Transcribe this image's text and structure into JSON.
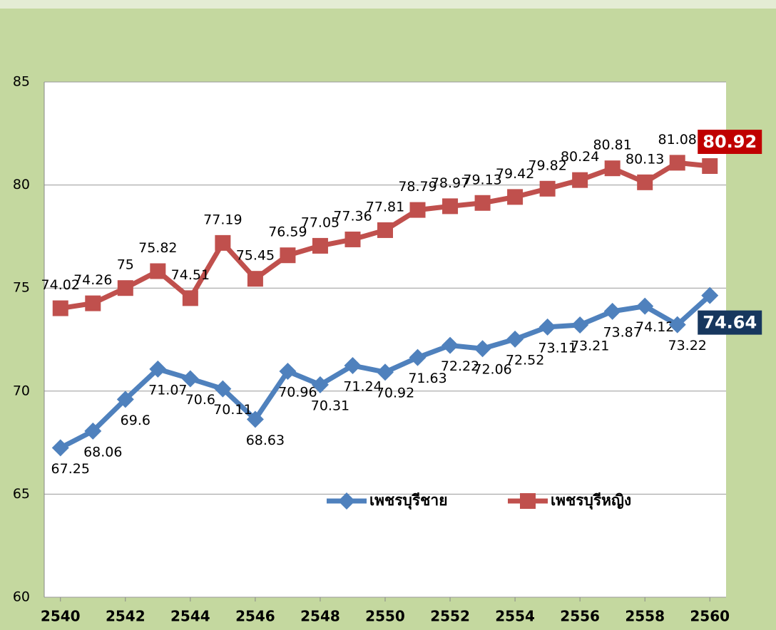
{
  "chart_data": {
    "type": "line",
    "x": [
      2540,
      2541,
      2542,
      2543,
      2544,
      2545,
      2546,
      2547,
      2548,
      2549,
      2550,
      2551,
      2552,
      2553,
      2554,
      2555,
      2556,
      2557,
      2558,
      2559,
      2560
    ],
    "series": [
      {
        "name": "เพชรบุรีชาย",
        "color": "#4f81bd",
        "marker": "diamond",
        "values": [
          67.25,
          68.06,
          69.6,
          71.07,
          70.6,
          70.11,
          68.63,
          70.96,
          70.31,
          71.24,
          70.92,
          71.63,
          72.22,
          72.06,
          72.52,
          73.11,
          73.21,
          73.87,
          74.12,
          73.22,
          74.64
        ]
      },
      {
        "name": "เพชรบุรีหญิง",
        "color": "#c0504d",
        "marker": "square",
        "values": [
          74.02,
          74.26,
          75,
          75.82,
          74.51,
          77.19,
          75.45,
          76.59,
          77.05,
          77.36,
          77.81,
          78.79,
          78.97,
          79.13,
          79.42,
          79.82,
          80.24,
          80.81,
          80.13,
          81.08,
          80.92
        ]
      }
    ],
    "xlim": [
      2539.5,
      2560.5
    ],
    "xticks": [
      2540,
      2542,
      2544,
      2546,
      2548,
      2550,
      2552,
      2554,
      2556,
      2558,
      2560
    ],
    "ylim": [
      60,
      85
    ],
    "yticks": [
      60,
      65,
      70,
      75,
      80,
      85
    ],
    "grid": true
  }
}
